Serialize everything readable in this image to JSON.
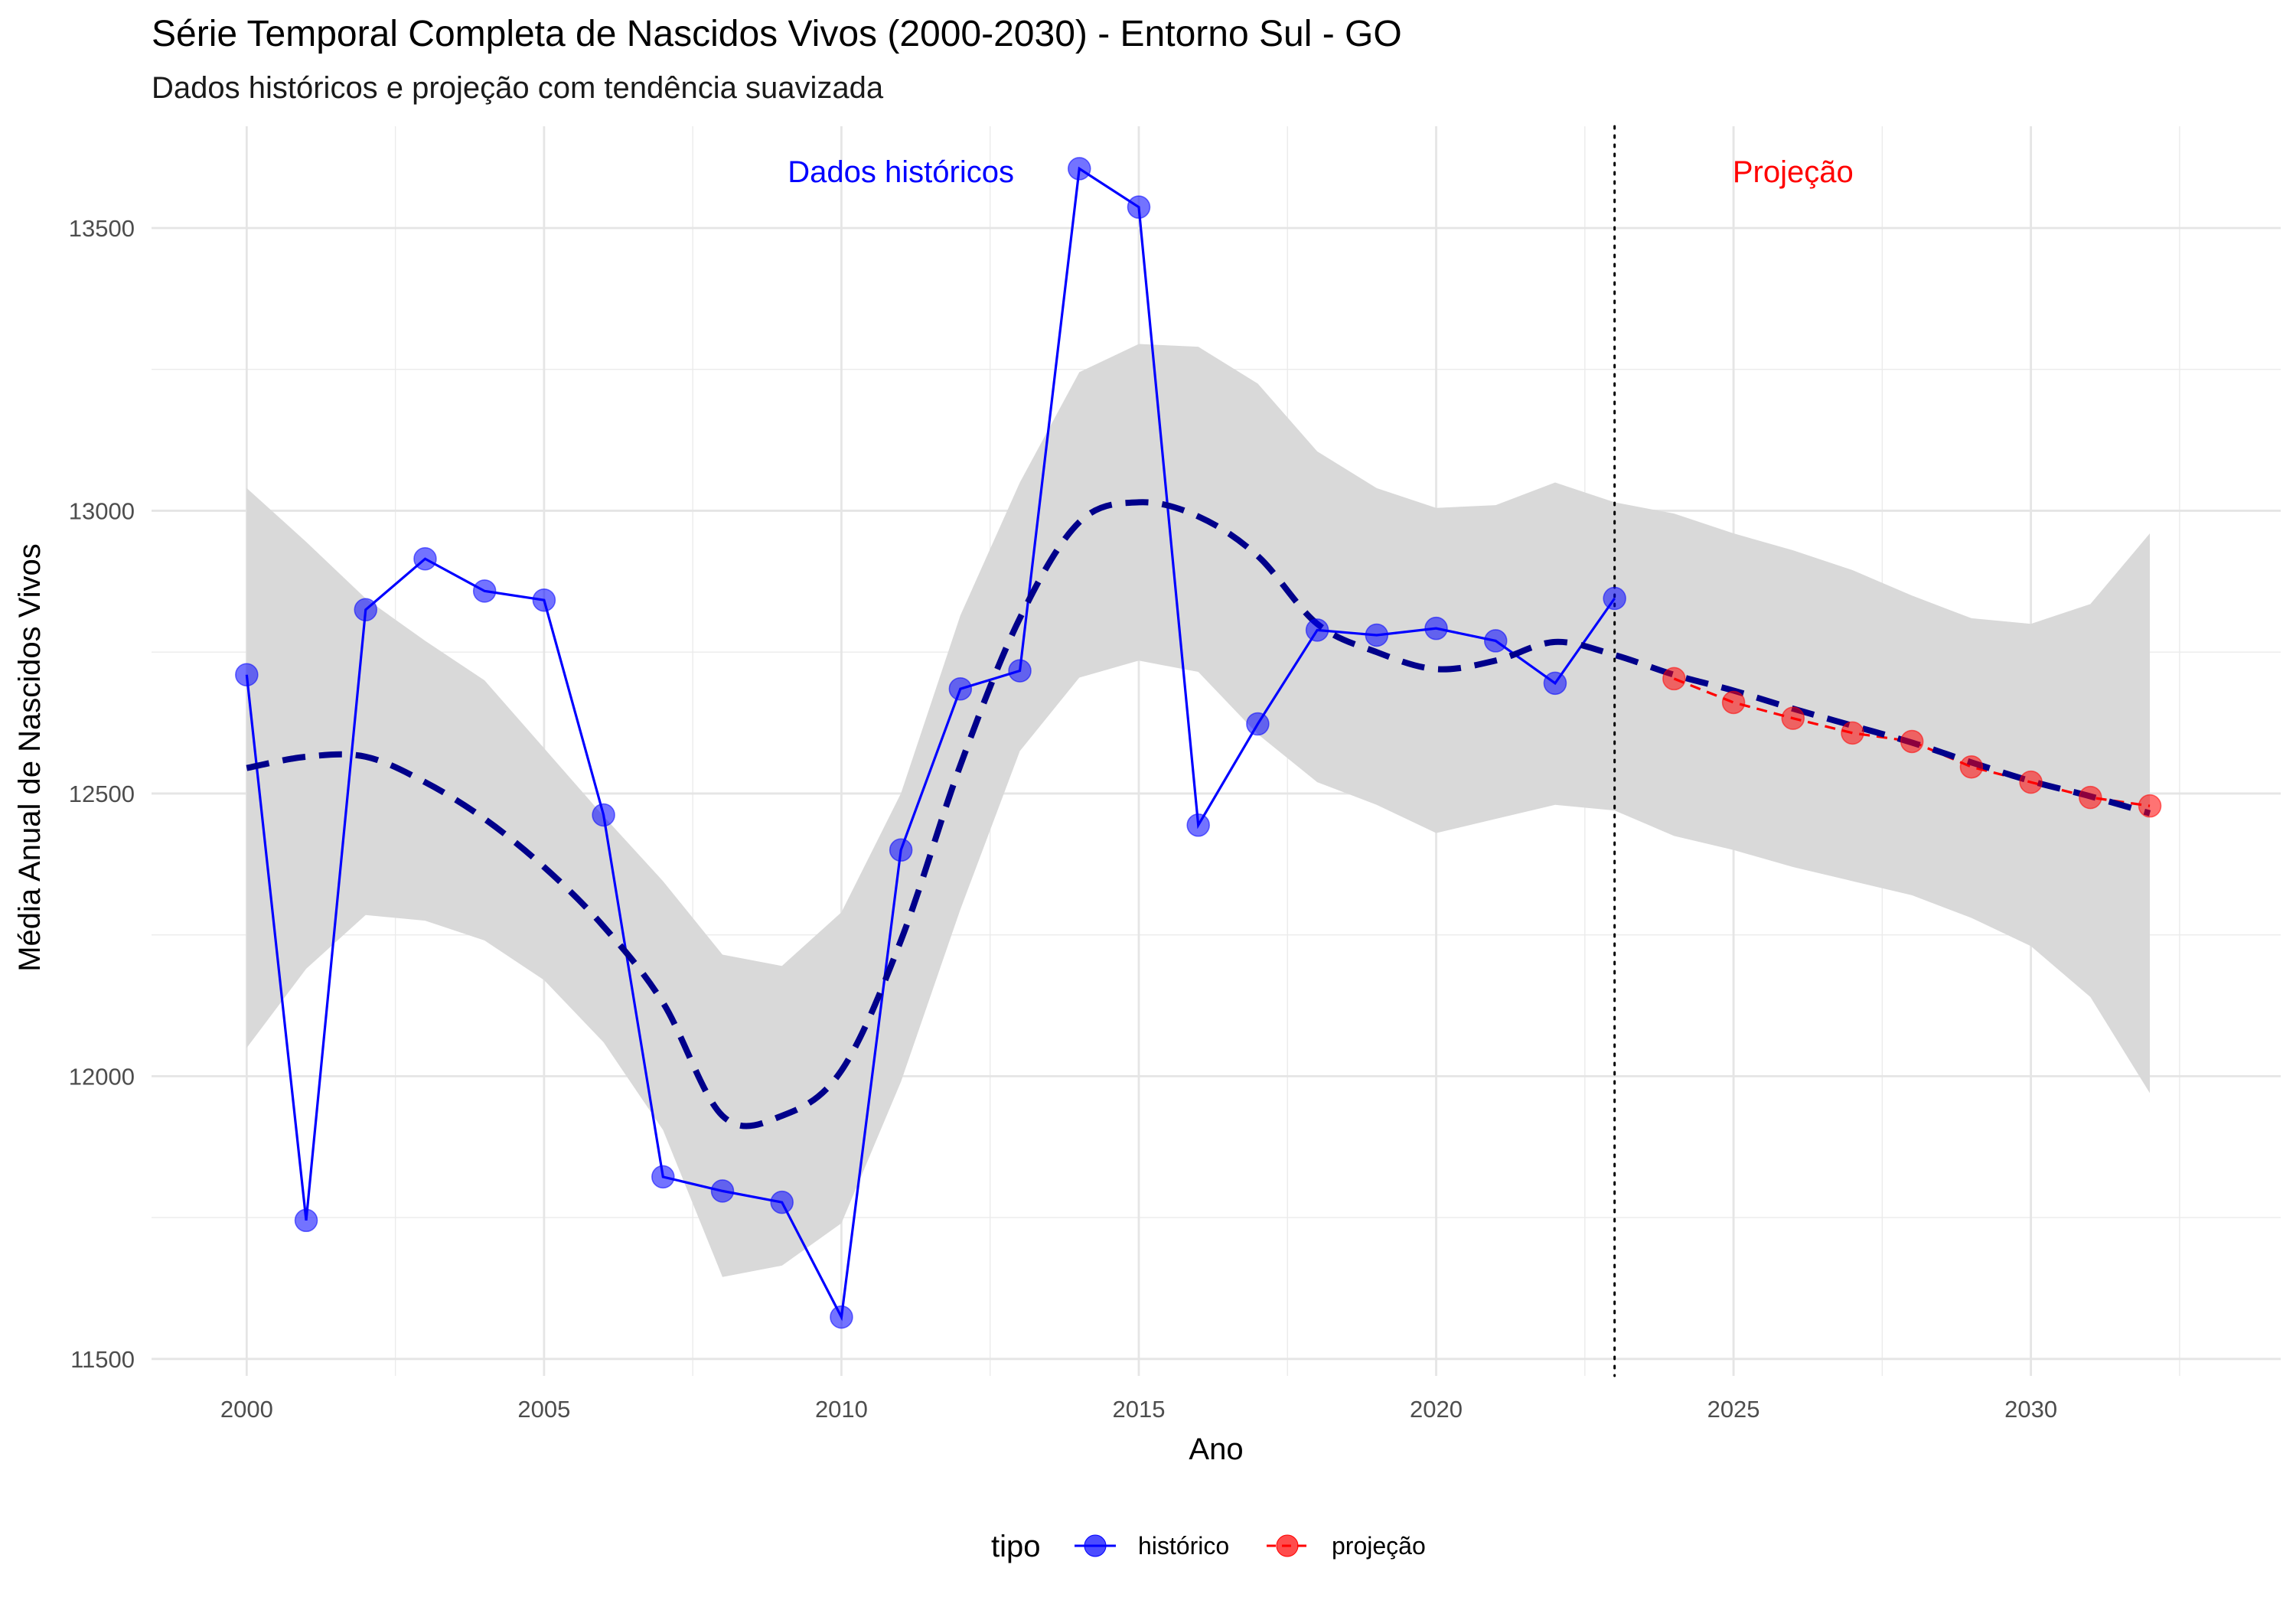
{
  "chart_data": {
    "type": "line",
    "title": "Série Temporal Completa de Nascidos Vivos (2000-2030) -  Entorno Sul - GO",
    "subtitle": "Dados históricos e projeção com tendência suavizada",
    "xlabel": "Ano",
    "ylabel": "Média Anual de Nascidos Vivos",
    "xlim": [
      1998.4,
      2034.2
    ],
    "ylim": [
      11470,
      13680
    ],
    "xticks": [
      2000,
      2005,
      2010,
      2015,
      2020,
      2025,
      2030
    ],
    "xtick_labels": [
      "2000",
      "2005",
      "2010",
      "2015",
      "2020",
      "2025",
      "2030"
    ],
    "yticks": [
      11500,
      12000,
      12500,
      13000,
      13500
    ],
    "ytick_labels": [
      "11500",
      "12000",
      "12500",
      "13000",
      "13500"
    ],
    "grid": true,
    "legend": {
      "title": "tipo",
      "position": "bottom",
      "entries": [
        {
          "label": "histórico",
          "color": "#0000ff"
        },
        {
          "label": "projeção",
          "color": "#ff0000"
        }
      ]
    },
    "series": [
      {
        "name": "histórico",
        "color": "#0000ff",
        "x": [
          2000,
          2001,
          2002,
          2003,
          2004,
          2005,
          2006,
          2007,
          2008,
          2009,
          2010,
          2011,
          2012,
          2013,
          2014,
          2015,
          2016,
          2017,
          2018,
          2019,
          2020,
          2021,
          2022,
          2023
        ],
        "y": [
          12710,
          11745,
          12825,
          12915,
          12858,
          12842,
          12462,
          11822,
          11797,
          11777,
          11574,
          12400,
          12685,
          12717,
          13605,
          13537,
          12444,
          12623,
          12789,
          12780,
          12792,
          12770,
          12695,
          12845
        ]
      },
      {
        "name": "projeção",
        "color": "#ff0000",
        "x": [
          2024,
          2025,
          2026,
          2027,
          2028,
          2029,
          2030,
          2031,
          2032
        ],
        "y": [
          12703,
          12661,
          12633,
          12607,
          12592,
          12547,
          12520,
          12493,
          12478
        ]
      }
    ],
    "trend": {
      "color": "#00008b",
      "x": [
        2000,
        2001,
        2002,
        2003,
        2004,
        2005,
        2006,
        2007,
        2008,
        2009,
        2010,
        2011,
        2012,
        2013,
        2014,
        2015,
        2016,
        2017,
        2018,
        2019,
        2020,
        2021,
        2022,
        2023,
        2024,
        2025,
        2026,
        2027,
        2028,
        2029,
        2030,
        2031,
        2032
      ],
      "y": [
        12545,
        12565,
        12565,
        12520,
        12455,
        12370,
        12265,
        12130,
        11930,
        11930,
        12010,
        12240,
        12550,
        12810,
        12980,
        13015,
        12990,
        12920,
        12800,
        12750,
        12720,
        12735,
        12768,
        12745,
        12710,
        12682,
        12650,
        12620,
        12590,
        12555,
        12522,
        12495,
        12465
      ],
      "band_lower": [
        12050,
        12190,
        12285,
        12275,
        12240,
        12170,
        12060,
        11905,
        11645,
        11665,
        11740,
        11990,
        12295,
        12575,
        12705,
        12735,
        12715,
        12605,
        12520,
        12480,
        12430,
        12455,
        12480,
        12470,
        12425,
        12400,
        12370,
        12345,
        12320,
        12280,
        12230,
        12140,
        11970
      ],
      "band_upper": [
        13040,
        12945,
        12845,
        12770,
        12700,
        12580,
        12460,
        12345,
        12215,
        12195,
        12290,
        12500,
        12815,
        13050,
        13245,
        13295,
        13290,
        13225,
        13105,
        13040,
        13005,
        13010,
        13050,
        13015,
        12995,
        12960,
        12930,
        12895,
        12850,
        12810,
        12800,
        12835,
        12960
      ],
      "band_color": "#d9d9d9"
    },
    "annotations": [
      {
        "text": "Dados históricos",
        "x": 2011,
        "y": 13600,
        "color": "#0000ff"
      },
      {
        "text": "Projeção",
        "x": 2026,
        "y": 13600,
        "color": "#ff0000"
      }
    ],
    "vline": {
      "x": 2023,
      "style": "dotted",
      "color": "#000000"
    }
  }
}
